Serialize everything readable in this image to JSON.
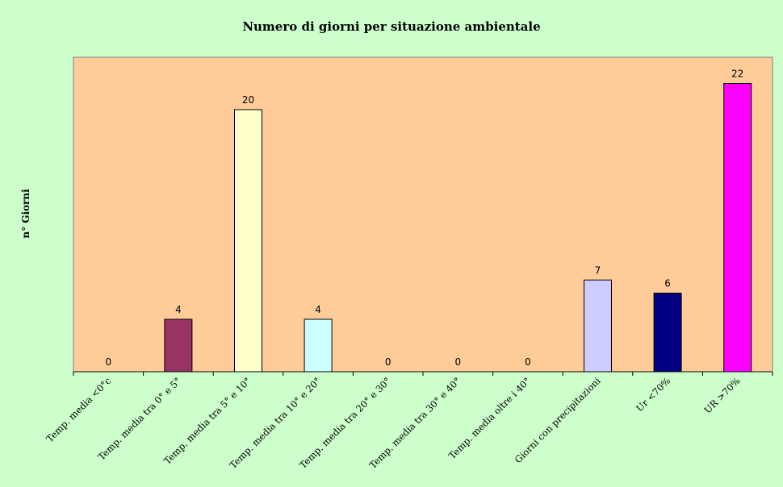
{
  "chart_data": {
    "type": "bar",
    "title": "Numero di giorni per situazione ambientale",
    "ylabel": "n° Giorni",
    "xlabel": "",
    "ylim": [
      0,
      24
    ],
    "grid": false,
    "legend": "none",
    "categories": [
      "Temp. media <0°c",
      "Temp. media tra 0° e 5°",
      "Temp. media tra 5° e 10°",
      "Temp. media tra 10° e 20°",
      "Temp. media tra 20° e 30°",
      "Temp. media tra 30° e 40°",
      "Temp. media oltre i 40°",
      "Giorni con precipitazioni",
      "Ur <70%",
      "UR >70%"
    ],
    "values": [
      0,
      4,
      20,
      4,
      0,
      0,
      0,
      7,
      6,
      22
    ],
    "colors": [
      "#9999ff",
      "#993366",
      "#ffffcc",
      "#ccffff",
      "#660066",
      "#ff8080",
      "#0066cc",
      "#ccccff",
      "#000080",
      "#ff00ff"
    ],
    "plot_background": "#ffcc99",
    "chart_background": "#ccffcc"
  }
}
